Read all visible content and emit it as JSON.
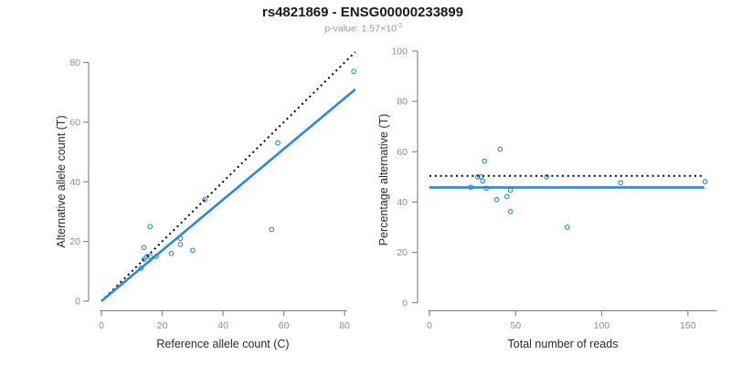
{
  "header": {
    "title": "rs4821869 - ENSG00000233899",
    "subtitle_base": "p-value: 1.57×10",
    "subtitle_exponent": "-2"
  },
  "colors": {
    "accent_blue": "#2688e3",
    "line_black": "#000000",
    "axis_gray": "#8a8a8a",
    "tick_label_gray": "#8e8e8e",
    "title_black": "#1a1a1a",
    "subtitle_gray": "#9b9b9b",
    "background": "#ffffff"
  },
  "chart_data": [
    {
      "id": "allele-counts",
      "type": "scatter",
      "xlabel": "Reference allele count (C)",
      "ylabel": "Alternative allele count (T)",
      "xlim": [
        0,
        84
      ],
      "ylim": [
        0,
        84
      ],
      "xticks": [
        0,
        20,
        40,
        60,
        80
      ],
      "yticks": [
        0,
        20,
        40,
        60,
        80
      ],
      "grid": false,
      "legend": "none",
      "marker": "open-circle",
      "points": [
        [
          13,
          11
        ],
        [
          14,
          14
        ],
        [
          14,
          18
        ],
        [
          15,
          15
        ],
        [
          16,
          15
        ],
        [
          16,
          25
        ],
        [
          18,
          15
        ],
        [
          23,
          16
        ],
        [
          26,
          19
        ],
        [
          26,
          21
        ],
        [
          30,
          17
        ],
        [
          34,
          34
        ],
        [
          56,
          24
        ],
        [
          58,
          53
        ],
        [
          83,
          77
        ]
      ],
      "lines": [
        {
          "name": "identity-line",
          "style": "dotted",
          "color": "#000000",
          "x1": 0,
          "y1": 0,
          "x2": 83.5,
          "y2": 83.5
        },
        {
          "name": "fit-line",
          "style": "solid",
          "color": "#2688e3",
          "x1": 0,
          "y1": 0,
          "x2": 83.5,
          "y2": 71
        }
      ]
    },
    {
      "id": "percentage-vs-total",
      "type": "scatter",
      "xlabel": "Total number of reads",
      "ylabel": "Percentage alternative (T)",
      "xlim": [
        0,
        166
      ],
      "ylim": [
        0,
        100
      ],
      "xticks": [
        0,
        50,
        100,
        150
      ],
      "yticks": [
        0,
        20,
        40,
        60,
        80,
        100
      ],
      "grid": false,
      "legend": "none",
      "marker": "open-circle",
      "points": [
        [
          24,
          45.8
        ],
        [
          28,
          50
        ],
        [
          32,
          56.3
        ],
        [
          30,
          50
        ],
        [
          31,
          48.4
        ],
        [
          41,
          61
        ],
        [
          33,
          45.5
        ],
        [
          39,
          41
        ],
        [
          45,
          42.2
        ],
        [
          47,
          44.7
        ],
        [
          47,
          36.2
        ],
        [
          68,
          50
        ],
        [
          80,
          30
        ],
        [
          111,
          47.7
        ],
        [
          160,
          48.1
        ]
      ],
      "lines": [
        {
          "name": "expected-line",
          "style": "dotted",
          "color": "#000000",
          "x1": 0,
          "y1": 50.4,
          "x2": 159.5,
          "y2": 50.4
        },
        {
          "name": "fit-line",
          "style": "solid",
          "color": "#2688e3",
          "x1": 0,
          "y1": 45.8,
          "x2": 159.5,
          "y2": 45.8
        }
      ]
    }
  ]
}
